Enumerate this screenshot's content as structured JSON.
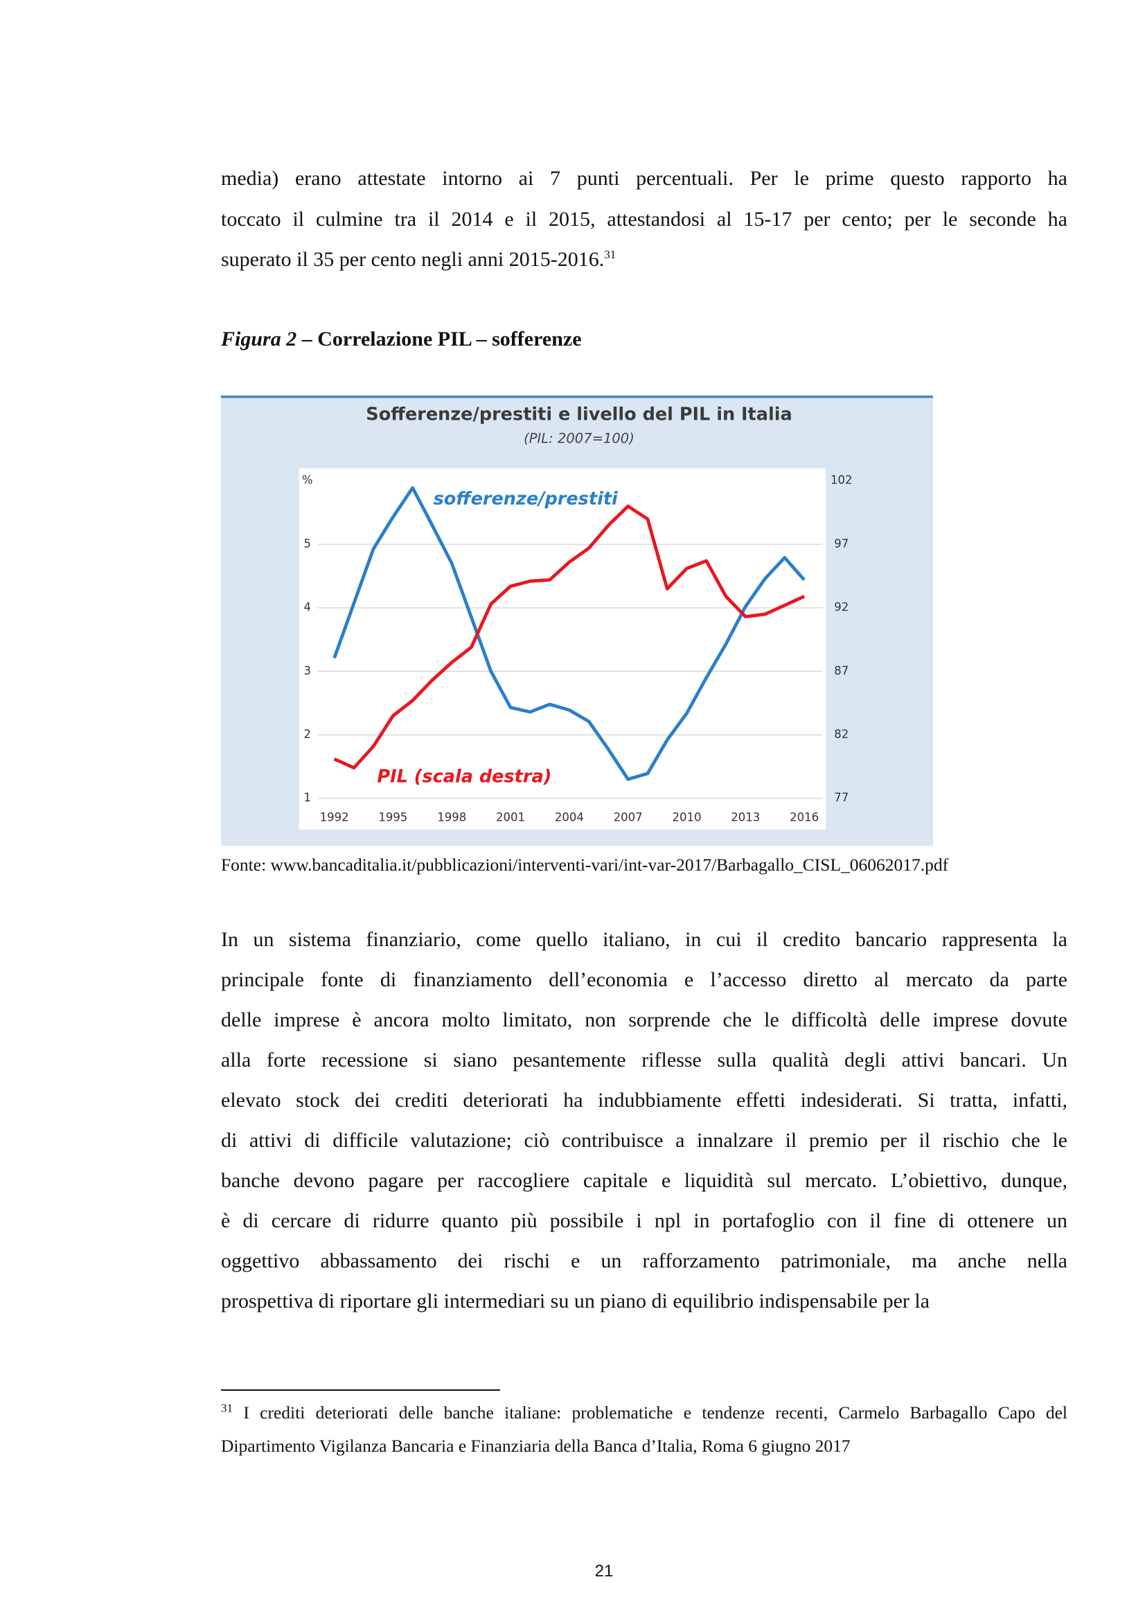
{
  "body_top": {
    "lines": [
      "media) erano attestate intorno ai 7 punti percentuali. Per le prime questo rapporto ha",
      "toccato il culmine tra il 2014 e il 2015, attestandosi al 15-17 per cento; per le seconde ha",
      "superato il 35 per cento negli anni 2015-2016."
    ],
    "footnote_ref": "31"
  },
  "figure_caption": {
    "label": "Figura 2",
    "text": "– Correlazione PIL – sofferenze"
  },
  "chart_data": {
    "type": "line",
    "title": "Sofferenze/prestiti e livello del PIL in Italia",
    "subtitle": "(PIL: 2007=100)",
    "y_label": "%",
    "x": [
      1992,
      1993,
      1994,
      1995,
      1996,
      1997,
      1998,
      1999,
      2000,
      2001,
      2002,
      2003,
      2004,
      2005,
      2006,
      2007,
      2008,
      2009,
      2010,
      2011,
      2012,
      2013,
      2014,
      2015,
      2016
    ],
    "xlim": [
      1990.2,
      2017.1
    ],
    "xticks": [
      1992,
      1995,
      1998,
      2001,
      2004,
      2007,
      2010,
      2013,
      2016
    ],
    "ylim": [
      1,
      6
    ],
    "yticks": [
      1,
      2,
      3,
      4,
      5
    ],
    "y2lim": [
      77,
      102
    ],
    "y2ticks": [
      77,
      82,
      87,
      92,
      97,
      102
    ],
    "grid": true,
    "series": [
      {
        "name": "sofferenze/prestiti",
        "color": "#2a7fc9",
        "values": [
          3.21,
          4.07,
          4.93,
          5.43,
          5.89,
          5.3,
          4.7,
          3.85,
          3.0,
          2.43,
          2.36,
          2.48,
          2.39,
          2.21,
          1.77,
          1.3,
          1.39,
          1.92,
          2.34,
          2.9,
          3.43,
          4.02,
          4.46,
          4.79,
          4.44
        ]
      },
      {
        "name": "PIL (scala destra)",
        "color": "#e8171f",
        "axis": "y2",
        "values": [
          80.1,
          79.4,
          81.1,
          83.5,
          84.7,
          86.3,
          87.7,
          88.9,
          92.3,
          93.7,
          94.1,
          94.2,
          95.6,
          96.7,
          98.5,
          100,
          99.0,
          93.5,
          95.1,
          95.7,
          92.9,
          91.3,
          91.5,
          92.2,
          92.9
        ]
      }
    ]
  },
  "source": "Fonte: www.bancaditalia.it/pubblicazioni/interventi-vari/int-var-2017/Barbagallo_CISL_06062017.pdf",
  "body": {
    "lines": [
      "In un sistema finanziario, come quello italiano, in cui il credito bancario rappresenta la",
      "principale fonte di finanziamento dell’economia e l’accesso diretto al mercato da parte",
      "delle imprese è ancora molto limitato, non sorprende che le difficoltà delle imprese dovute",
      "alla forte recessione si siano pesantemente riflesse sulla qualità degli attivi bancari. Un",
      "elevato stock dei crediti deteriorati ha indubbiamente effetti indesiderati. Si tratta, infatti,",
      "di attivi di difficile valutazione; ciò contribuisce a innalzare il premio per il rischio che le",
      "banche devono pagare per raccogliere capitale e liquidità sul mercato. L’obiettivo, dunque,",
      "è di cercare di ridurre quanto più possibile i npl in portafoglio con il fine di ottenere un",
      "oggettivo abbassamento dei rischi e un rafforzamento patrimoniale, ma anche nella",
      "prospettiva di riportare gli intermediari su un piano di equilibrio indispensabile per la"
    ]
  },
  "footnote": {
    "number": "31",
    "lines": [
      "I crediti deteriorati delle banche italiane: problematiche e tendenze recenti, Carmelo Barbagallo Capo del",
      "Dipartimento Vigilanza Bancaria e Finanziaria della Banca d’Italia, Roma 6 giugno 2017"
    ]
  },
  "page_number": "21"
}
